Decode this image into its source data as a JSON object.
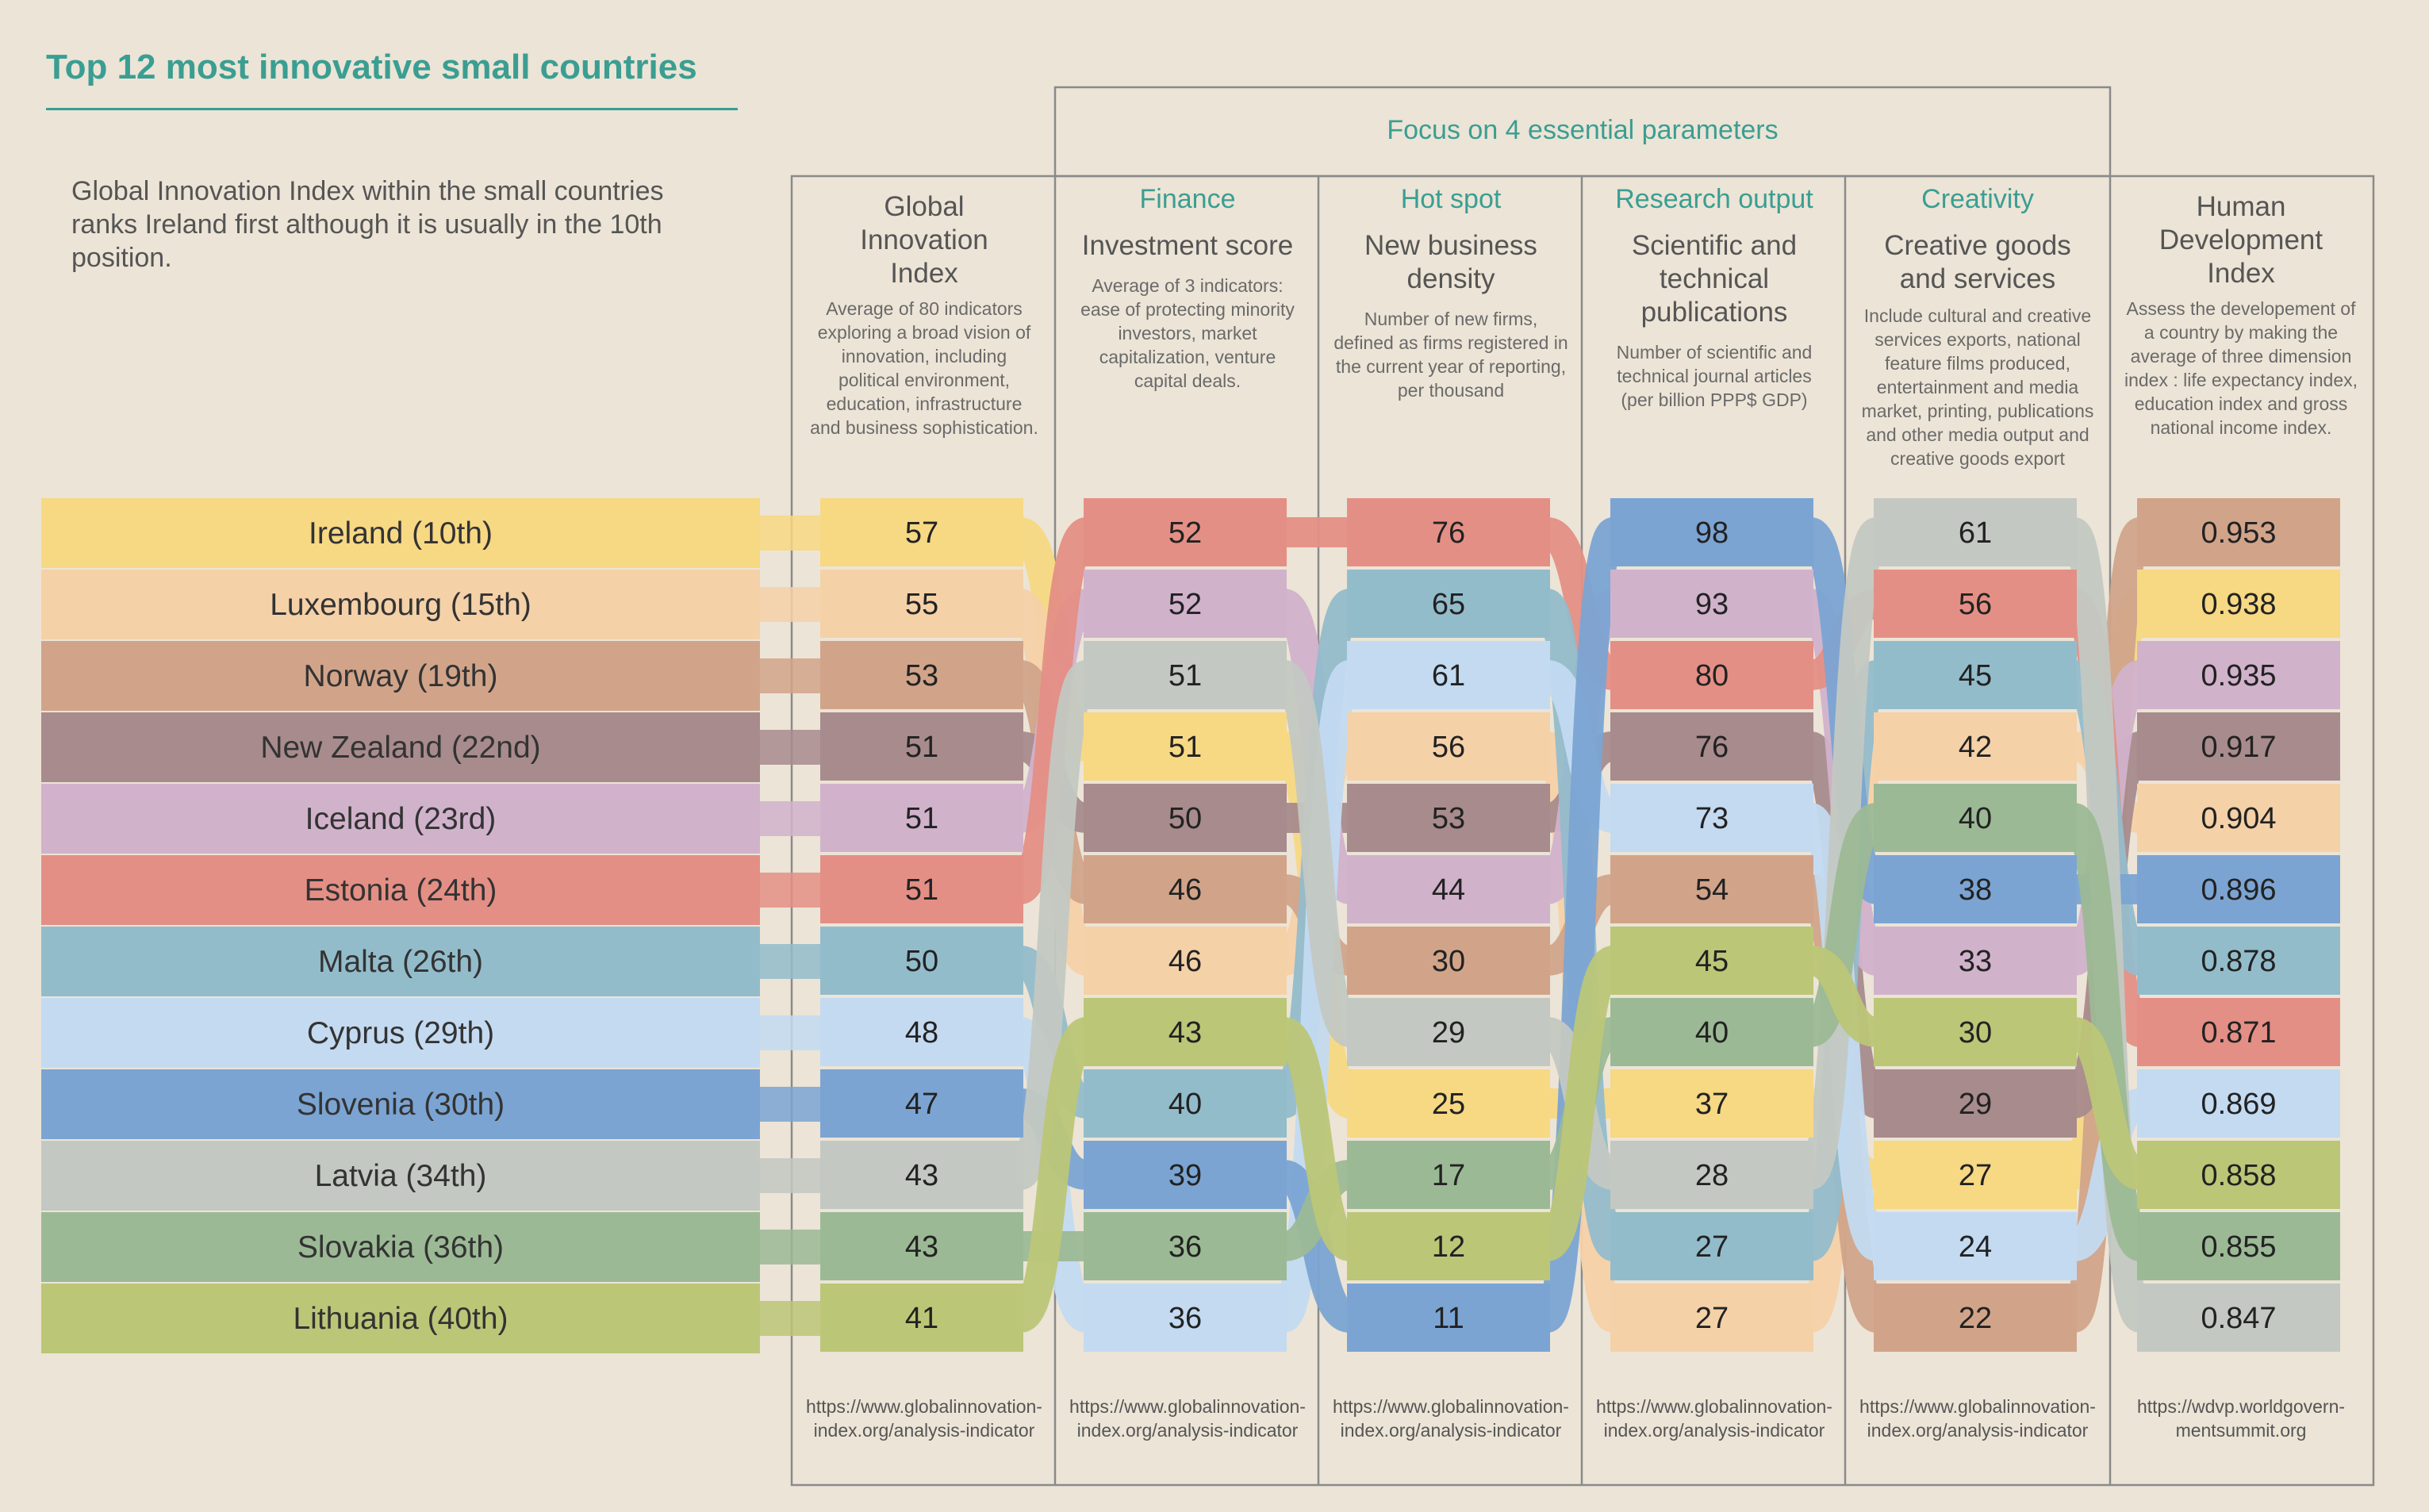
{
  "title": "Top 12 most innovative small countries",
  "subtitle": "Global Innovation Index within the small countries ranks Ireland first although it is usually in the 10th position.",
  "focus_label": "Focus on 4 essential parameters",
  "colors": {
    "background": "#ece4d6",
    "accent": "#3a9e92",
    "Ireland": "#f7d883",
    "Luxembourg": "#f5d1a8",
    "Norway": "#d1a48a",
    "New Zealand": "#a88b8d",
    "Iceland": "#d1b2cb",
    "Estonia": "#e48f85",
    "Malta": "#93bccb",
    "Cyprus": "#c3daf1",
    "Slovenia": "#7ba4d3",
    "Latvia": "#c3c8c2",
    "Slovakia": "#9cb995",
    "Lithuania": "#bcc677"
  },
  "columns": [
    {
      "key": "gii",
      "category": "",
      "metric": "Global Innovation Index",
      "description": "Average of 80 indicators exploring a broad vision of innovation, including political environment, education, infrastructure and business sophistication.",
      "source": "https://www.globalinnovation-index.org/analysis-indicator"
    },
    {
      "key": "finance",
      "category": "Finance",
      "metric": "Investment score",
      "description": "Average of 3 indicators: ease of protecting minority investors, market capitalization, venture capital deals.",
      "source": "https://www.globalinnovation-index.org/analysis-indicator"
    },
    {
      "key": "hotspot",
      "category": "Hot spot",
      "metric": "New business density",
      "description": "Number of new firms, defined as firms registered in the current year of reporting, per thousand",
      "source": "https://www.globalinnovation-index.org/analysis-indicator"
    },
    {
      "key": "research",
      "category": "Research output",
      "metric": "Scientific and technical publications",
      "description": "Number of scientific and technical journal articles (per billion PPP$ GDP)",
      "source": "https://www.globalinnovation-index.org/analysis-indicator"
    },
    {
      "key": "creativity",
      "category": "Creativity",
      "metric": "Creative goods and services",
      "description": "Include cultural and creative services exports, national feature films produced, entertainment and media market, printing, publications and other media output and creative goods export",
      "source": "https://www.globalinnovation-index.org/analysis-indicator"
    },
    {
      "key": "hdi",
      "category": "",
      "metric": "Human Development Index",
      "description": "Assess the developement of a country by making the average of three dimension index : life expectancy index, education index and gross national income index.",
      "source": "https://wdvp.worldgovern-mentsummit.org"
    }
  ],
  "chart_data": {
    "type": "table",
    "countries": [
      "Ireland (10th)",
      "Luxembourg (15th)",
      "Norway (19th)",
      "New Zealand (22nd)",
      "Iceland (23rd)",
      "Estonia (24th)",
      "Malta (26th)",
      "Cyprus (29th)",
      "Slovenia (30th)",
      "Latvia (34th)",
      "Slovakia (36th)",
      "Lithuania (40th)"
    ],
    "series": [
      {
        "key": "gii",
        "ranking": [
          {
            "country": "Ireland",
            "value": "57"
          },
          {
            "country": "Luxembourg",
            "value": "55"
          },
          {
            "country": "Norway",
            "value": "53"
          },
          {
            "country": "New Zealand",
            "value": "51"
          },
          {
            "country": "Iceland",
            "value": "51"
          },
          {
            "country": "Estonia",
            "value": "51"
          },
          {
            "country": "Malta",
            "value": "50"
          },
          {
            "country": "Cyprus",
            "value": "48"
          },
          {
            "country": "Slovenia",
            "value": "47"
          },
          {
            "country": "Latvia",
            "value": "43"
          },
          {
            "country": "Slovakia",
            "value": "43"
          },
          {
            "country": "Lithuania",
            "value": "41"
          }
        ]
      },
      {
        "key": "finance",
        "ranking": [
          {
            "country": "Estonia",
            "value": "52"
          },
          {
            "country": "Iceland",
            "value": "52"
          },
          {
            "country": "Latvia",
            "value": "51"
          },
          {
            "country": "Ireland",
            "value": "51"
          },
          {
            "country": "New Zealand",
            "value": "50"
          },
          {
            "country": "Norway",
            "value": "46"
          },
          {
            "country": "Luxembourg",
            "value": "46"
          },
          {
            "country": "Lithuania",
            "value": "43"
          },
          {
            "country": "Malta",
            "value": "40"
          },
          {
            "country": "Slovenia",
            "value": "39"
          },
          {
            "country": "Slovakia",
            "value": "36"
          },
          {
            "country": "Cyprus",
            "value": "36"
          }
        ]
      },
      {
        "key": "hotspot",
        "ranking": [
          {
            "country": "Estonia",
            "value": "76"
          },
          {
            "country": "Malta",
            "value": "65"
          },
          {
            "country": "Cyprus",
            "value": "61"
          },
          {
            "country": "Luxembourg",
            "value": "56"
          },
          {
            "country": "New Zealand",
            "value": "53"
          },
          {
            "country": "Iceland",
            "value": "44"
          },
          {
            "country": "Norway",
            "value": "30"
          },
          {
            "country": "Latvia",
            "value": "29"
          },
          {
            "country": "Ireland",
            "value": "25"
          },
          {
            "country": "Slovakia",
            "value": "17"
          },
          {
            "country": "Lithuania",
            "value": "12"
          },
          {
            "country": "Slovenia",
            "value": "11"
          }
        ]
      },
      {
        "key": "research",
        "ranking": [
          {
            "country": "Slovenia",
            "value": "98"
          },
          {
            "country": "Iceland",
            "value": "93"
          },
          {
            "country": "Estonia",
            "value": "80"
          },
          {
            "country": "New Zealand",
            "value": "76"
          },
          {
            "country": "Cyprus",
            "value": "73"
          },
          {
            "country": "Norway",
            "value": "54"
          },
          {
            "country": "Lithuania",
            "value": "45"
          },
          {
            "country": "Slovakia",
            "value": "40"
          },
          {
            "country": "Ireland",
            "value": "37"
          },
          {
            "country": "Latvia",
            "value": "28"
          },
          {
            "country": "Malta",
            "value": "27"
          },
          {
            "country": "Luxembourg",
            "value": "27"
          }
        ]
      },
      {
        "key": "creativity",
        "ranking": [
          {
            "country": "Latvia",
            "value": "61"
          },
          {
            "country": "Estonia",
            "value": "56"
          },
          {
            "country": "Malta",
            "value": "45"
          },
          {
            "country": "Luxembourg",
            "value": "42"
          },
          {
            "country": "Slovakia",
            "value": "40"
          },
          {
            "country": "Slovenia",
            "value": "38"
          },
          {
            "country": "Iceland",
            "value": "33"
          },
          {
            "country": "Lithuania",
            "value": "30"
          },
          {
            "country": "New Zealand",
            "value": "29"
          },
          {
            "country": "Ireland",
            "value": "27"
          },
          {
            "country": "Cyprus",
            "value": "24"
          },
          {
            "country": "Norway",
            "value": "22"
          }
        ]
      },
      {
        "key": "hdi",
        "ranking": [
          {
            "country": "Norway",
            "value": "0.953"
          },
          {
            "country": "Ireland",
            "value": "0.938"
          },
          {
            "country": "Iceland",
            "value": "0.935"
          },
          {
            "country": "New Zealand",
            "value": "0.917"
          },
          {
            "country": "Luxembourg",
            "value": "0.904"
          },
          {
            "country": "Slovenia",
            "value": "0.896"
          },
          {
            "country": "Malta",
            "value": "0.878"
          },
          {
            "country": "Estonia",
            "value": "0.871"
          },
          {
            "country": "Cyprus",
            "value": "0.869"
          },
          {
            "country": "Lithuania",
            "value": "0.858"
          },
          {
            "country": "Slovakia",
            "value": "0.855"
          },
          {
            "country": "Latvia",
            "value": "0.847"
          }
        ]
      }
    ]
  }
}
